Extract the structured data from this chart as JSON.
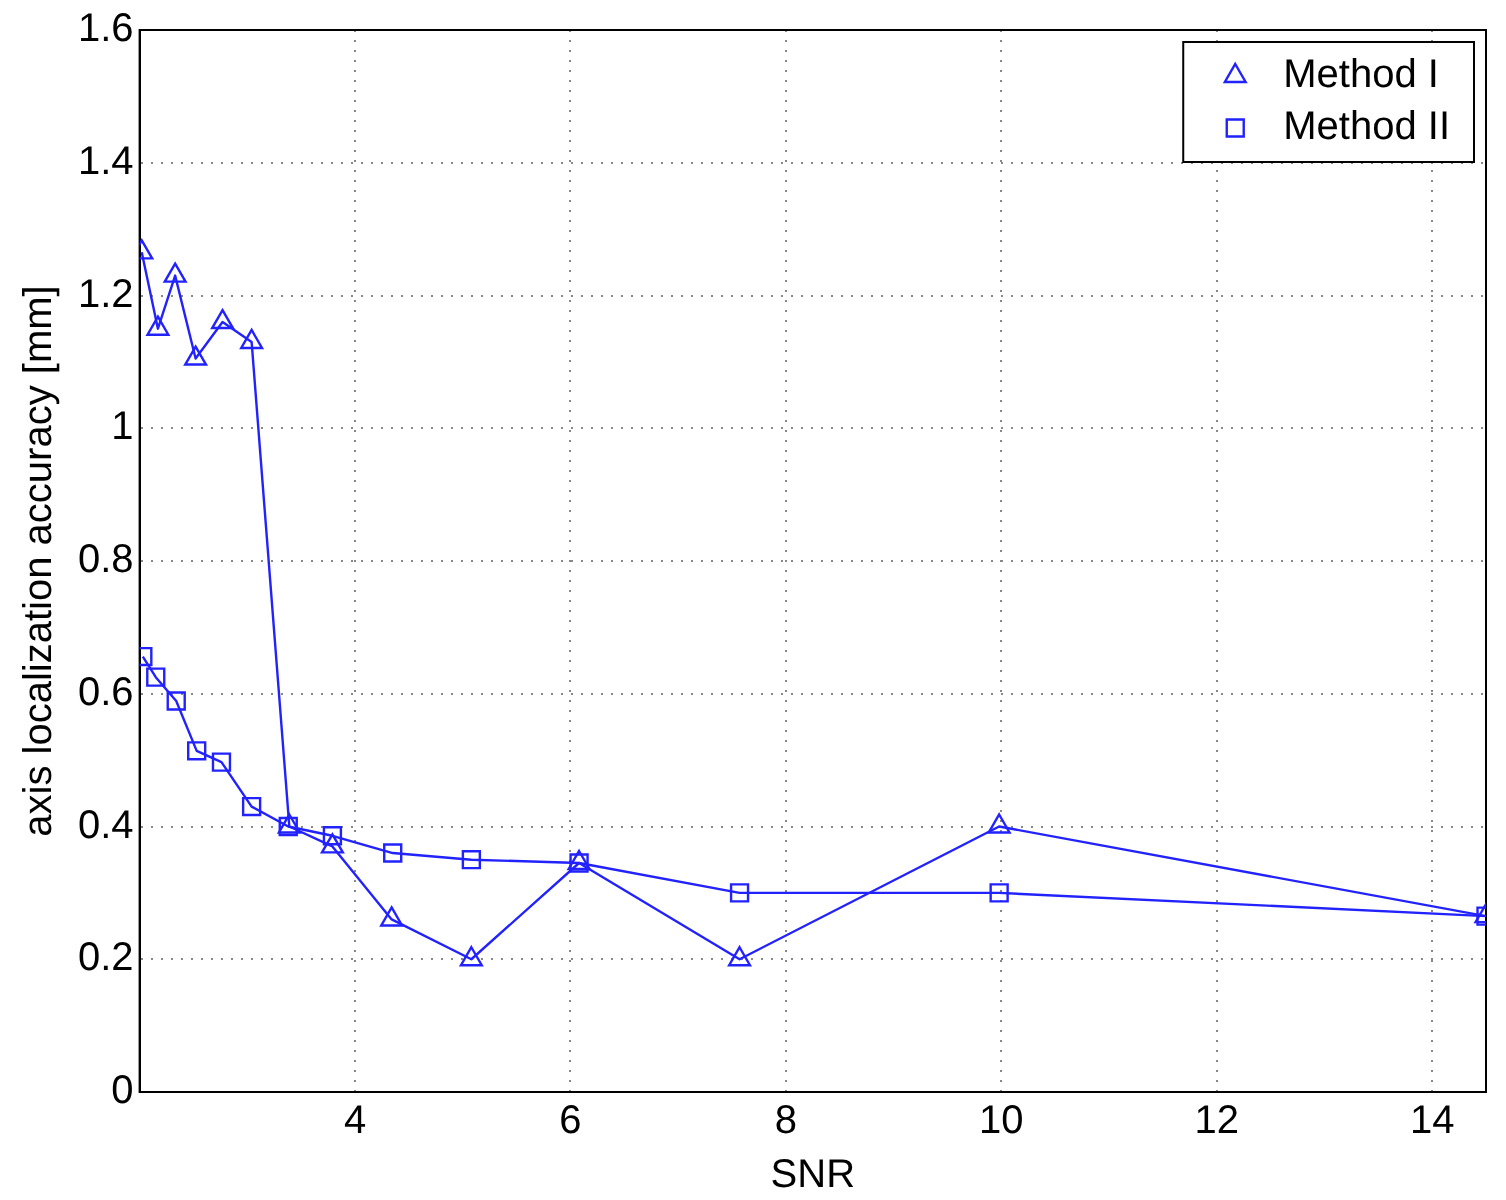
{
  "chart_data": {
    "type": "line",
    "xlabel": "SNR",
    "ylabel": "axis localization accuracy [mm]",
    "xlim": [
      2,
      14.5
    ],
    "xticks": [
      4,
      6,
      8,
      10,
      12,
      14
    ],
    "ylim": [
      0,
      1.6
    ],
    "yticks": [
      0,
      0.2,
      0.4,
      0.6,
      0.8,
      1,
      1.2,
      1.4,
      1.6
    ],
    "grid": true,
    "legend": "top right",
    "line_style": "solid",
    "series": [
      {
        "name": "Method I",
        "color": "#2222ff",
        "marker": "triangle",
        "x": [
          2.02,
          2.17,
          2.33,
          2.52,
          2.77,
          3.04,
          3.39,
          3.79,
          4.34,
          5.08,
          6.08,
          7.57,
          9.98,
          14.5
        ],
        "values": [
          1.265,
          1.15,
          1.23,
          1.105,
          1.16,
          1.13,
          0.4,
          0.37,
          0.26,
          0.2,
          0.345,
          0.2,
          0.4,
          0.265
        ]
      },
      {
        "name": "Method II",
        "color": "#2222ff",
        "marker": "square",
        "x": [
          2.03,
          2.15,
          2.34,
          2.53,
          2.76,
          3.04,
          3.38,
          3.79,
          4.35,
          5.08,
          6.08,
          7.57,
          9.98,
          14.5
        ],
        "values": [
          0.656,
          0.625,
          0.589,
          0.514,
          0.497,
          0.43,
          0.4,
          0.386,
          0.36,
          0.35,
          0.345,
          0.3,
          0.3,
          0.265
        ]
      }
    ]
  }
}
